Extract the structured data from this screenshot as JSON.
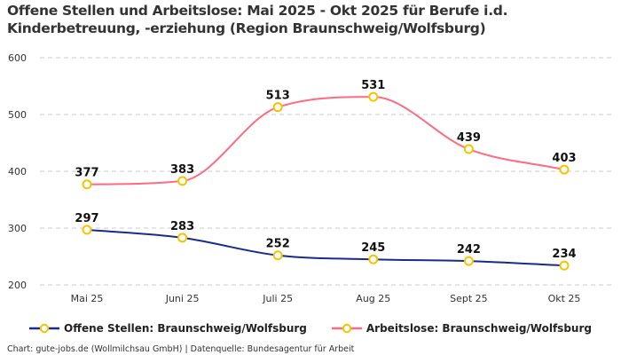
{
  "chart_data": {
    "type": "line",
    "title": "Offene Stellen und Arbeitslose: Mai 2025 - Okt 2025 für Berufe i.d. Kinderbetreuung, -erziehung (Region Braunschweig/Wolfsburg)",
    "categories": [
      "Mai 25",
      "Juni 25",
      "Juli 25",
      "Aug 25",
      "Sept 25",
      "Okt 25"
    ],
    "series": [
      {
        "name": "Offene Stellen: Braunschweig/Wolfsburg",
        "color": "#1a2b8c",
        "values": [
          297,
          283,
          252,
          245,
          242,
          234
        ]
      },
      {
        "name": "Arbeitslose: Braunschweig/Wolfsburg",
        "color": "#ff6b81",
        "values": [
          377,
          383,
          513,
          531,
          439,
          403
        ]
      }
    ],
    "marker_color": "#f5c400",
    "ylim": [
      200,
      600
    ],
    "yticks": [
      200,
      300,
      400,
      500,
      600
    ],
    "grid": true,
    "legend": "bottom",
    "xlabel": "",
    "ylabel": ""
  },
  "footer": "Chart: gute-jobs.de (Wollmilchsau GmbH) | Datenquelle: Bundesagentur für Arbeit"
}
